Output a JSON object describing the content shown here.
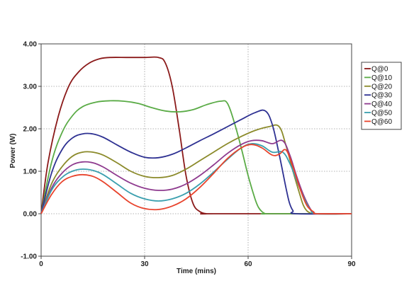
{
  "chart_data": {
    "type": "line",
    "title": "",
    "xlabel": "Time (mins)",
    "ylabel": "Power (W)",
    "xlim": [
      0,
      90
    ],
    "ylim": [
      -1.0,
      4.0
    ],
    "x_ticks": [
      0,
      30,
      60,
      90
    ],
    "x_tick_labels": [
      "0",
      "30",
      "60",
      "90"
    ],
    "y_ticks": [
      -1.0,
      0.0,
      1.0,
      2.0,
      3.0,
      4.0
    ],
    "y_tick_labels": [
      "-1.00",
      "0.00",
      "1.00",
      "2.00",
      "3.00",
      "4.00"
    ],
    "grid": "dotted, both axes",
    "legend_position": "right",
    "series": [
      {
        "name": "Q@0",
        "color": "#8b1a1a",
        "x": [
          0,
          2,
          5,
          8,
          11,
          14,
          17,
          20,
          25,
          30,
          34,
          36,
          38,
          40,
          42,
          44,
          46,
          48,
          50,
          90
        ],
        "y": [
          0.0,
          1.2,
          2.3,
          3.0,
          3.35,
          3.55,
          3.65,
          3.68,
          3.68,
          3.68,
          3.68,
          3.55,
          3.0,
          2.0,
          0.9,
          0.25,
          0.05,
          0.0,
          0.0,
          0.0
        ]
      },
      {
        "name": "Q@10",
        "color": "#5aab46",
        "x": [
          0,
          3,
          6,
          9,
          12,
          16,
          20,
          24,
          28,
          32,
          36,
          40,
          44,
          48,
          52,
          54,
          56,
          58,
          60,
          62,
          63,
          64,
          65,
          66,
          90
        ],
        "y": [
          0.0,
          1.2,
          1.9,
          2.3,
          2.52,
          2.63,
          2.66,
          2.65,
          2.6,
          2.5,
          2.42,
          2.4,
          2.45,
          2.57,
          2.65,
          2.6,
          2.15,
          1.55,
          0.9,
          0.35,
          0.15,
          0.05,
          0.0,
          0.0,
          0.0
        ]
      },
      {
        "name": "Q@20",
        "color": "#8b8a2a",
        "x": [
          0,
          3,
          6,
          9,
          12,
          15,
          18,
          22,
          26,
          30,
          34,
          38,
          42,
          46,
          50,
          54,
          58,
          62,
          66,
          69,
          71,
          73,
          75,
          76,
          77,
          78,
          79,
          90
        ],
        "y": [
          0.0,
          0.7,
          1.1,
          1.35,
          1.45,
          1.45,
          1.38,
          1.2,
          1.0,
          0.88,
          0.85,
          0.9,
          1.05,
          1.25,
          1.45,
          1.65,
          1.82,
          1.96,
          2.05,
          2.05,
          1.6,
          1.0,
          0.45,
          0.2,
          0.07,
          0.02,
          0.0,
          0.0
        ]
      },
      {
        "name": "Q@30",
        "color": "#2e3192",
        "x": [
          0,
          3,
          6,
          9,
          12,
          15,
          18,
          22,
          26,
          30,
          34,
          38,
          42,
          46,
          50,
          54,
          58,
          62,
          65,
          67,
          69,
          71,
          72,
          73,
          74,
          90
        ],
        "y": [
          0.0,
          0.95,
          1.5,
          1.78,
          1.88,
          1.88,
          1.8,
          1.62,
          1.45,
          1.33,
          1.32,
          1.4,
          1.55,
          1.72,
          1.88,
          2.05,
          2.22,
          2.38,
          2.42,
          2.1,
          1.4,
          0.6,
          0.25,
          0.07,
          0.0,
          0.0
        ]
      },
      {
        "name": "Q@40",
        "color": "#8e3a8e",
        "x": [
          0,
          3,
          6,
          9,
          12,
          15,
          18,
          22,
          26,
          30,
          34,
          38,
          42,
          46,
          50,
          54,
          58,
          61,
          64,
          67,
          70,
          72,
          74,
          76,
          78,
          79,
          80,
          90
        ],
        "y": [
          0.0,
          0.6,
          0.95,
          1.15,
          1.22,
          1.2,
          1.1,
          0.9,
          0.72,
          0.6,
          0.55,
          0.58,
          0.7,
          0.9,
          1.15,
          1.42,
          1.63,
          1.72,
          1.72,
          1.65,
          1.72,
          1.4,
          0.9,
          0.45,
          0.12,
          0.04,
          0.0,
          0.0
        ]
      },
      {
        "name": "Q@50",
        "color": "#3a9fae",
        "x": [
          0,
          3,
          6,
          9,
          12,
          15,
          18,
          22,
          26,
          30,
          34,
          38,
          42,
          46,
          50,
          54,
          58,
          61,
          64,
          67,
          70,
          72,
          74,
          76,
          78,
          80,
          90
        ],
        "y": [
          0.0,
          0.55,
          0.85,
          1.0,
          1.05,
          1.02,
          0.92,
          0.7,
          0.48,
          0.35,
          0.3,
          0.35,
          0.48,
          0.7,
          0.98,
          1.28,
          1.55,
          1.65,
          1.6,
          1.45,
          1.45,
          1.2,
          0.8,
          0.4,
          0.1,
          0.0,
          0.0
        ]
      },
      {
        "name": "Q@60",
        "color": "#e8432c",
        "x": [
          0,
          3,
          6,
          9,
          12,
          15,
          18,
          22,
          26,
          30,
          34,
          38,
          42,
          46,
          50,
          54,
          58,
          61,
          64,
          67,
          69,
          71,
          73,
          75,
          77,
          79,
          80,
          90
        ],
        "y": [
          0.0,
          0.45,
          0.75,
          0.88,
          0.92,
          0.88,
          0.75,
          0.5,
          0.25,
          0.12,
          0.1,
          0.18,
          0.35,
          0.62,
          0.95,
          1.3,
          1.55,
          1.63,
          1.55,
          1.38,
          1.4,
          1.5,
          1.1,
          0.6,
          0.2,
          0.04,
          0.0,
          0.0
        ]
      }
    ]
  }
}
